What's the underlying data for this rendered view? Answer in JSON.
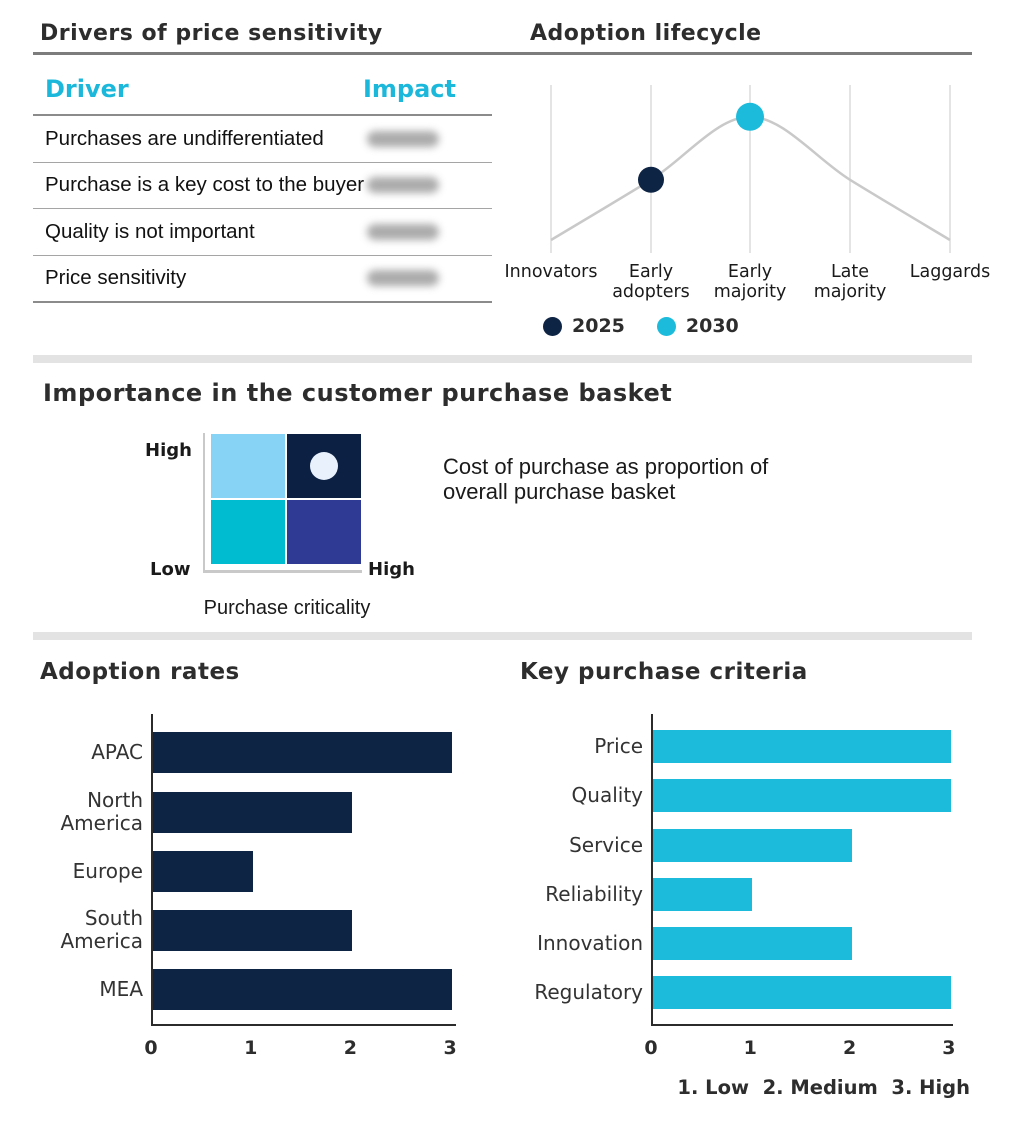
{
  "colors": {
    "navy": "#0E2444",
    "cyan": "#1CBBDC",
    "cyan_header": "#1CB8DB",
    "title_text": "#2D2D2D",
    "curve": "#C9C9C9",
    "gridline": "#DCDCDC",
    "redacted_gray": "#969696",
    "matrix_top_left": "#87D3F5",
    "matrix_top_right": "#0C2043",
    "matrix_bottom_left": "#00BCD0",
    "matrix_bottom_right": "#2F3A94",
    "matrix_marker": "#E8F1FC"
  },
  "drivers_panel": {
    "title": "Drivers of price sensitivity",
    "col_driver": "Driver",
    "col_impact": "Impact",
    "rows": [
      "Purchases are undifferentiated",
      "Purchase is a key cost to the buyer",
      "Quality is not important",
      "Price sensitivity"
    ],
    "impact_values_redacted": true
  },
  "lifecycle_panel": {
    "title": "Adoption lifecycle",
    "categories": [
      "Innovators",
      "Early adopters",
      "Early majority",
      "Late majority",
      "Laggards"
    ],
    "curve_heights": [
      0.05,
      0.48,
      0.93,
      0.48,
      0.05
    ],
    "markers": [
      {
        "label": "2025",
        "category": "Early adopters",
        "category_index": 1,
        "height": 0.48,
        "color": "#0E2444",
        "radius": 13
      },
      {
        "label": "2030",
        "category": "Early majority",
        "category_index": 2,
        "height": 0.93,
        "color": "#1CBBDC",
        "radius": 14
      }
    ],
    "legend": [
      {
        "label": "2025",
        "color": "#0E2444"
      },
      {
        "label": "2030",
        "color": "#1CBBDC"
      }
    ]
  },
  "basket_panel": {
    "title": "Importance in the customer purchase basket",
    "y_top_label": "High",
    "y_bottom_label": "Low",
    "x_end_label": "High",
    "x_axis_label": "Purchase criticality",
    "note": "Cost of purchase as proportion of overall purchase basket",
    "marker_quadrant": "top_right"
  },
  "adoption_panel": {
    "title": "Adoption rates",
    "categories": [
      "APAC",
      "North America",
      "Europe",
      "South America",
      "MEA"
    ],
    "values": [
      3,
      2,
      1,
      2,
      3
    ],
    "ticks": [
      "0",
      "1",
      "2",
      "3"
    ]
  },
  "criteria_panel": {
    "title": "Key purchase criteria",
    "categories": [
      "Price",
      "Quality",
      "Service",
      "Reliability",
      "Innovation",
      "Regulatory"
    ],
    "values": [
      3,
      3,
      2,
      1,
      2,
      3
    ],
    "ticks": [
      "0",
      "1",
      "2",
      "3"
    ],
    "footnote": "1. Low  2. Medium  3. High"
  },
  "chart_data": [
    {
      "type": "line",
      "title": "Adoption lifecycle",
      "x": [
        "Innovators",
        "Early adopters",
        "Early majority",
        "Late majority",
        "Laggards"
      ],
      "curve_relative_heights": [
        0.05,
        0.48,
        0.93,
        0.48,
        0.05
      ],
      "series": [
        {
          "name": "2025",
          "point": {
            "x": "Early adopters",
            "height": 0.48
          }
        },
        {
          "name": "2030",
          "point": {
            "x": "Early majority",
            "height": 0.93
          }
        }
      ],
      "legend_position": "bottom",
      "grid": "vertical-only"
    },
    {
      "type": "heatmap",
      "title": "Importance in the customer purchase basket",
      "xlabel": "Purchase criticality",
      "x_range": [
        "Low",
        "High"
      ],
      "y_range": [
        "Low",
        "High"
      ],
      "quadrants": [
        {
          "position": "top_left",
          "color": "#87D3F5"
        },
        {
          "position": "top_right",
          "color": "#0C2043",
          "marker": "Cost of purchase as proportion of overall purchase basket"
        },
        {
          "position": "bottom_left",
          "color": "#00BCD0"
        },
        {
          "position": "bottom_right",
          "color": "#2F3A94"
        }
      ]
    },
    {
      "type": "bar",
      "title": "Adoption rates",
      "orientation": "horizontal",
      "categories": [
        "APAC",
        "North America",
        "Europe",
        "South America",
        "MEA"
      ],
      "values": [
        3,
        2,
        1,
        2,
        3
      ],
      "xlim": [
        0,
        3
      ],
      "xticks": [
        0,
        1,
        2,
        3
      ],
      "bar_color": "#0E2444"
    },
    {
      "type": "bar",
      "title": "Key purchase criteria",
      "orientation": "horizontal",
      "categories": [
        "Price",
        "Quality",
        "Service",
        "Reliability",
        "Innovation",
        "Regulatory"
      ],
      "values": [
        3,
        3,
        2,
        1,
        2,
        3
      ],
      "xlim": [
        0,
        3
      ],
      "xticks": [
        0,
        1,
        2,
        3
      ],
      "bar_color": "#1CBBDC",
      "annotation": "1. Low  2. Medium  3. High"
    },
    {
      "type": "table",
      "title": "Drivers of price sensitivity",
      "columns": [
        "Driver",
        "Impact"
      ],
      "rows": [
        [
          "Purchases are undifferentiated",
          "(redacted)"
        ],
        [
          "Purchase is a key cost to the buyer",
          "(redacted)"
        ],
        [
          "Quality is not important",
          "(redacted)"
        ],
        [
          "Price sensitivity",
          "(redacted)"
        ]
      ]
    }
  ]
}
